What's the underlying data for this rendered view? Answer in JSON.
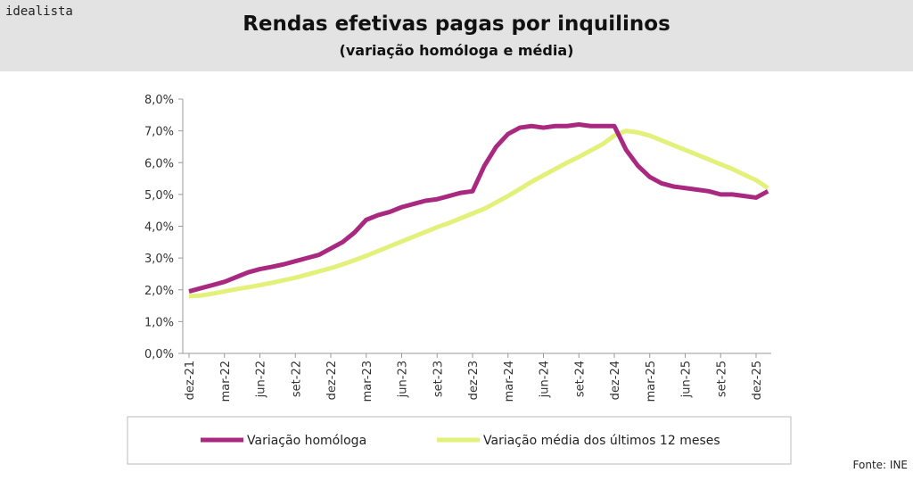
{
  "logo": "idealista",
  "source": "Fonte: INE",
  "chart_data": {
    "type": "line",
    "title": "Rendas efetivas pagas por inquilinos",
    "subtitle": "(variação homóloga e média)",
    "categories": [
      "dez-21",
      null,
      null,
      "mar-22",
      null,
      null,
      "jun-22",
      null,
      null,
      "set-22",
      null,
      null,
      "dez-22",
      null,
      null,
      "mar-23",
      null,
      null,
      "jun-23",
      null,
      null,
      "set-23",
      null,
      null,
      "dez-23",
      null,
      null,
      "mar-24",
      null,
      null,
      "jun-24",
      null,
      null,
      "set-24",
      null,
      null,
      "dez-24",
      null,
      null,
      "mar-25",
      null,
      null,
      "jun-25",
      null,
      null,
      "set-25",
      null,
      null,
      "dez-25",
      null
    ],
    "series": [
      {
        "name": "Variação homóloga",
        "color": "#a8297f",
        "values": [
          1.95,
          2.05,
          2.15,
          2.25,
          2.4,
          2.55,
          2.65,
          2.72,
          2.8,
          2.9,
          3.0,
          3.1,
          3.3,
          3.5,
          3.8,
          4.2,
          4.35,
          4.45,
          4.6,
          4.7,
          4.8,
          4.85,
          4.95,
          5.05,
          5.1,
          5.9,
          6.5,
          6.9,
          7.1,
          7.15,
          7.1,
          7.15,
          7.15,
          7.2,
          7.15,
          7.15,
          7.15,
          6.4,
          5.9,
          5.55,
          5.35,
          5.25,
          5.2,
          5.15,
          5.1,
          5.0,
          5.0,
          4.95,
          4.9,
          5.1
        ]
      },
      {
        "name": "Variação média dos últimos 12 meses",
        "color": "#e3f07a",
        "values": [
          1.8,
          1.82,
          1.88,
          1.95,
          2.02,
          2.08,
          2.15,
          2.22,
          2.3,
          2.38,
          2.48,
          2.58,
          2.68,
          2.8,
          2.93,
          3.07,
          3.22,
          3.37,
          3.52,
          3.67,
          3.82,
          3.97,
          4.1,
          4.25,
          4.4,
          4.55,
          4.75,
          4.95,
          5.17,
          5.4,
          5.6,
          5.8,
          6.0,
          6.18,
          6.38,
          6.58,
          6.85,
          7.0,
          6.95,
          6.85,
          6.7,
          6.55,
          6.4,
          6.25,
          6.1,
          5.95,
          5.8,
          5.62,
          5.45,
          5.2
        ]
      }
    ],
    "ylim": [
      0,
      8
    ],
    "yticks": [
      {
        "value": 0,
        "label": "0,0%"
      },
      {
        "value": 1,
        "label": "1,0%"
      },
      {
        "value": 2,
        "label": "2,0%"
      },
      {
        "value": 3,
        "label": "3,0%"
      },
      {
        "value": 4,
        "label": "4,0%"
      },
      {
        "value": 5,
        "label": "5,0%"
      },
      {
        "value": 6,
        "label": "6,0%"
      },
      {
        "value": 7,
        "label": "7,0%"
      },
      {
        "value": 8,
        "label": "8,0%"
      }
    ],
    "legend": "bottom"
  }
}
